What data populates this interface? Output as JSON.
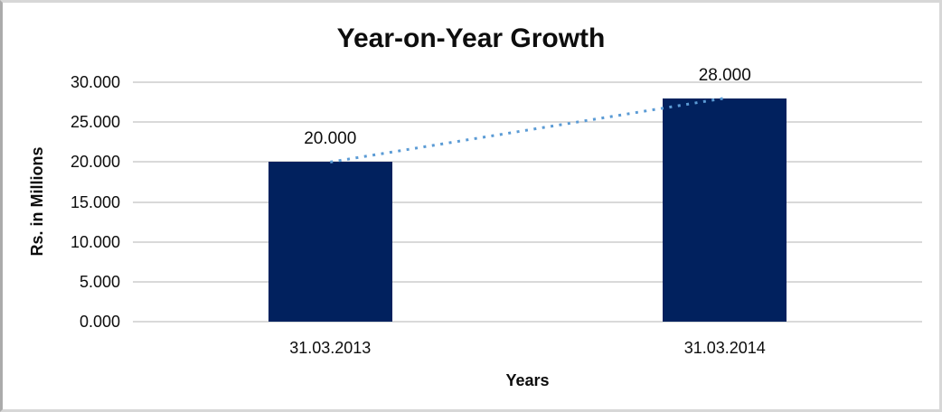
{
  "window": {
    "background_color": "#ffffff",
    "border_color": "#d7d7d7"
  },
  "chart_data": {
    "type": "bar",
    "title": "Year-on-Year Growth",
    "xlabel": "Years",
    "ylabel": "Rs. in Millions",
    "categories": [
      "31.03.2013",
      "31.03.2014"
    ],
    "values": [
      20,
      28
    ],
    "data_labels": [
      "20.000",
      "28.000"
    ],
    "y_ticks": [
      0,
      5,
      10,
      15,
      20,
      25,
      30
    ],
    "y_tick_labels": [
      "0.000",
      "5.000",
      "10.000",
      "15.000",
      "20.000",
      "25.000",
      "30.000"
    ],
    "ylim": [
      0,
      30
    ],
    "grid": "horizontal",
    "gridline_color": "#d9d9d9",
    "legend": "none",
    "bar_color": "#01215E",
    "trendline": {
      "style": "dotted",
      "color": "#5B9BD5",
      "from_value": 20,
      "to_value": 28
    }
  }
}
